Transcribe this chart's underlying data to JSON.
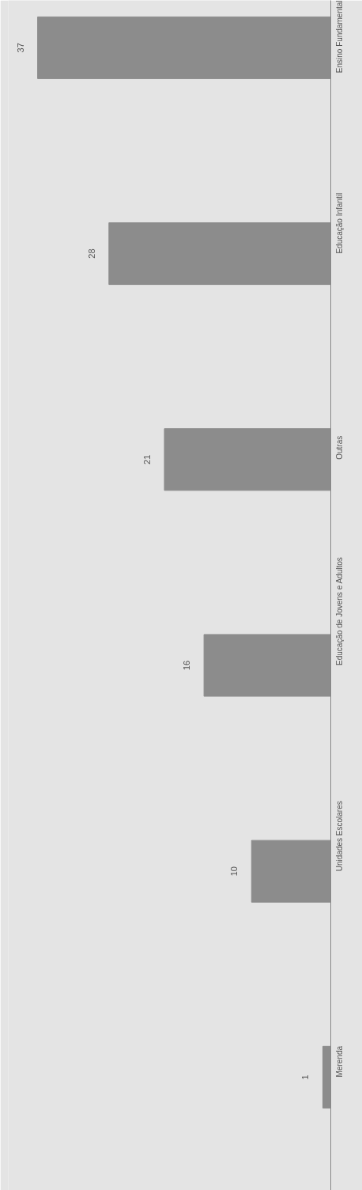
{
  "chart_data": {
    "type": "bar",
    "orientation": "horizontal",
    "categories": [
      "Ensino Fundamental",
      "Educação Infantil",
      "Outras",
      "Educação de Jovens e Adultos",
      "Unidades Escolares",
      "Merenda"
    ],
    "values": [
      37,
      28,
      21,
      16,
      10,
      1
    ],
    "color": "#8c8c8c",
    "data_labels": true
  }
}
